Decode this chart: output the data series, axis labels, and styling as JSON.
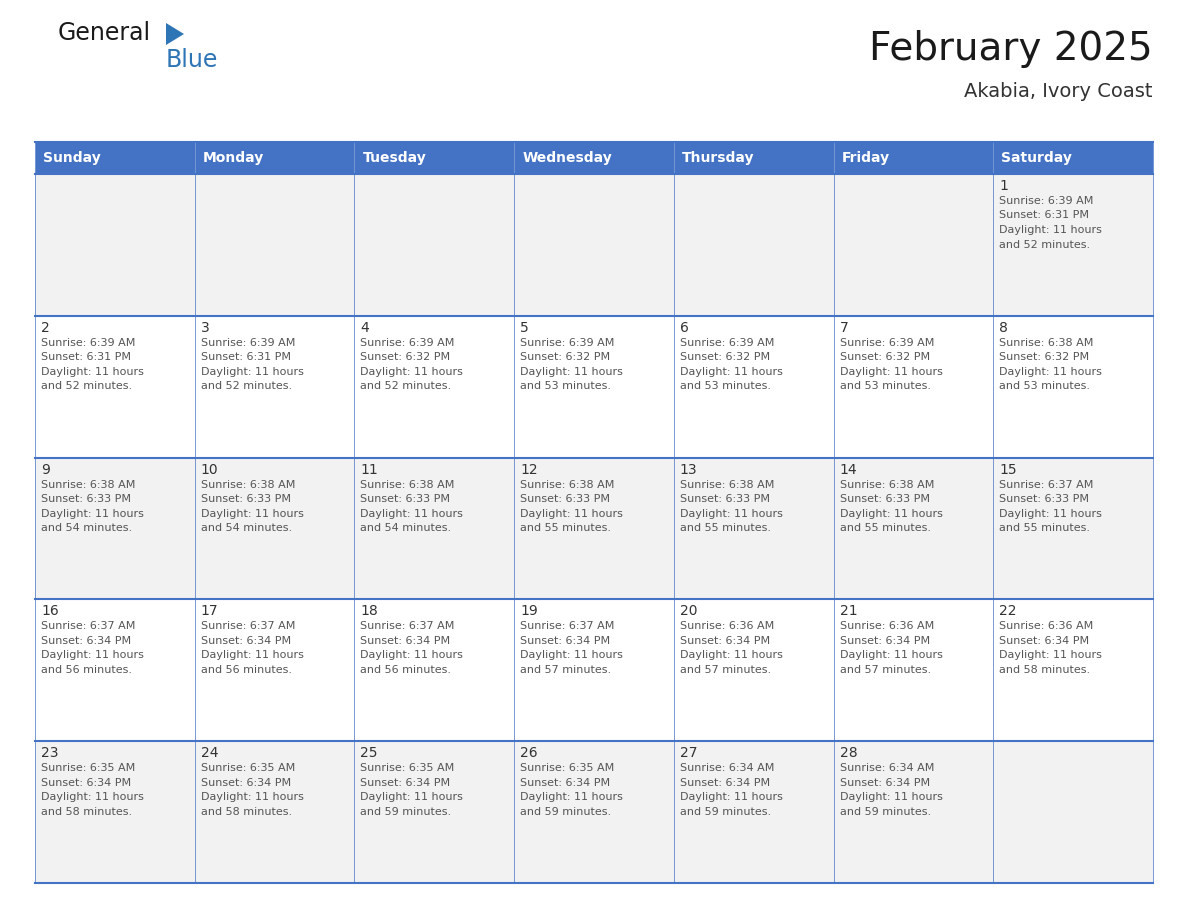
{
  "title": "February 2025",
  "subtitle": "Akabia, Ivory Coast",
  "days_of_week": [
    "Sunday",
    "Monday",
    "Tuesday",
    "Wednesday",
    "Thursday",
    "Friday",
    "Saturday"
  ],
  "header_bg": "#4472C4",
  "header_text_color": "#FFFFFF",
  "cell_bg_row0": "#F2F2F2",
  "cell_bg_row1": "#FFFFFF",
  "cell_bg_row2": "#F2F2F2",
  "cell_bg_row3": "#FFFFFF",
  "cell_bg_row4": "#F2F2F2",
  "border_color": "#4472C4",
  "separator_color": "#4472C4",
  "day_number_color": "#333333",
  "day_text_color": "#555555",
  "title_color": "#1a1a1a",
  "subtitle_color": "#333333",
  "logo_general_color": "#1a1a1a",
  "logo_blue_color": "#2E75B6",
  "calendar_data": [
    [
      null,
      null,
      null,
      null,
      null,
      null,
      {
        "day": 1,
        "sunrise": "6:39 AM",
        "sunset": "6:31 PM",
        "daylight_hours": "11 hours",
        "daylight_mins": "and 52 minutes."
      }
    ],
    [
      {
        "day": 2,
        "sunrise": "6:39 AM",
        "sunset": "6:31 PM",
        "daylight_hours": "11 hours",
        "daylight_mins": "and 52 minutes."
      },
      {
        "day": 3,
        "sunrise": "6:39 AM",
        "sunset": "6:31 PM",
        "daylight_hours": "11 hours",
        "daylight_mins": "and 52 minutes."
      },
      {
        "day": 4,
        "sunrise": "6:39 AM",
        "sunset": "6:32 PM",
        "daylight_hours": "11 hours",
        "daylight_mins": "and 52 minutes."
      },
      {
        "day": 5,
        "sunrise": "6:39 AM",
        "sunset": "6:32 PM",
        "daylight_hours": "11 hours",
        "daylight_mins": "and 53 minutes."
      },
      {
        "day": 6,
        "sunrise": "6:39 AM",
        "sunset": "6:32 PM",
        "daylight_hours": "11 hours",
        "daylight_mins": "and 53 minutes."
      },
      {
        "day": 7,
        "sunrise": "6:39 AM",
        "sunset": "6:32 PM",
        "daylight_hours": "11 hours",
        "daylight_mins": "and 53 minutes."
      },
      {
        "day": 8,
        "sunrise": "6:38 AM",
        "sunset": "6:32 PM",
        "daylight_hours": "11 hours",
        "daylight_mins": "and 53 minutes."
      }
    ],
    [
      {
        "day": 9,
        "sunrise": "6:38 AM",
        "sunset": "6:33 PM",
        "daylight_hours": "11 hours",
        "daylight_mins": "and 54 minutes."
      },
      {
        "day": 10,
        "sunrise": "6:38 AM",
        "sunset": "6:33 PM",
        "daylight_hours": "11 hours",
        "daylight_mins": "and 54 minutes."
      },
      {
        "day": 11,
        "sunrise": "6:38 AM",
        "sunset": "6:33 PM",
        "daylight_hours": "11 hours",
        "daylight_mins": "and 54 minutes."
      },
      {
        "day": 12,
        "sunrise": "6:38 AM",
        "sunset": "6:33 PM",
        "daylight_hours": "11 hours",
        "daylight_mins": "and 55 minutes."
      },
      {
        "day": 13,
        "sunrise": "6:38 AM",
        "sunset": "6:33 PM",
        "daylight_hours": "11 hours",
        "daylight_mins": "and 55 minutes."
      },
      {
        "day": 14,
        "sunrise": "6:38 AM",
        "sunset": "6:33 PM",
        "daylight_hours": "11 hours",
        "daylight_mins": "and 55 minutes."
      },
      {
        "day": 15,
        "sunrise": "6:37 AM",
        "sunset": "6:33 PM",
        "daylight_hours": "11 hours",
        "daylight_mins": "and 55 minutes."
      }
    ],
    [
      {
        "day": 16,
        "sunrise": "6:37 AM",
        "sunset": "6:34 PM",
        "daylight_hours": "11 hours",
        "daylight_mins": "and 56 minutes."
      },
      {
        "day": 17,
        "sunrise": "6:37 AM",
        "sunset": "6:34 PM",
        "daylight_hours": "11 hours",
        "daylight_mins": "and 56 minutes."
      },
      {
        "day": 18,
        "sunrise": "6:37 AM",
        "sunset": "6:34 PM",
        "daylight_hours": "11 hours",
        "daylight_mins": "and 56 minutes."
      },
      {
        "day": 19,
        "sunrise": "6:37 AM",
        "sunset": "6:34 PM",
        "daylight_hours": "11 hours",
        "daylight_mins": "and 57 minutes."
      },
      {
        "day": 20,
        "sunrise": "6:36 AM",
        "sunset": "6:34 PM",
        "daylight_hours": "11 hours",
        "daylight_mins": "and 57 minutes."
      },
      {
        "day": 21,
        "sunrise": "6:36 AM",
        "sunset": "6:34 PM",
        "daylight_hours": "11 hours",
        "daylight_mins": "and 57 minutes."
      },
      {
        "day": 22,
        "sunrise": "6:36 AM",
        "sunset": "6:34 PM",
        "daylight_hours": "11 hours",
        "daylight_mins": "and 58 minutes."
      }
    ],
    [
      {
        "day": 23,
        "sunrise": "6:35 AM",
        "sunset": "6:34 PM",
        "daylight_hours": "11 hours",
        "daylight_mins": "and 58 minutes."
      },
      {
        "day": 24,
        "sunrise": "6:35 AM",
        "sunset": "6:34 PM",
        "daylight_hours": "11 hours",
        "daylight_mins": "and 58 minutes."
      },
      {
        "day": 25,
        "sunrise": "6:35 AM",
        "sunset": "6:34 PM",
        "daylight_hours": "11 hours",
        "daylight_mins": "and 59 minutes."
      },
      {
        "day": 26,
        "sunrise": "6:35 AM",
        "sunset": "6:34 PM",
        "daylight_hours": "11 hours",
        "daylight_mins": "and 59 minutes."
      },
      {
        "day": 27,
        "sunrise": "6:34 AM",
        "sunset": "6:34 PM",
        "daylight_hours": "11 hours",
        "daylight_mins": "and 59 minutes."
      },
      {
        "day": 28,
        "sunrise": "6:34 AM",
        "sunset": "6:34 PM",
        "daylight_hours": "11 hours",
        "daylight_mins": "and 59 minutes."
      },
      null
    ]
  ],
  "fig_width": 11.88,
  "fig_height": 9.18,
  "dpi": 100,
  "title_fontsize": 28,
  "subtitle_fontsize": 14,
  "header_fontsize": 10,
  "day_number_fontsize": 10,
  "cell_text_fontsize": 8
}
